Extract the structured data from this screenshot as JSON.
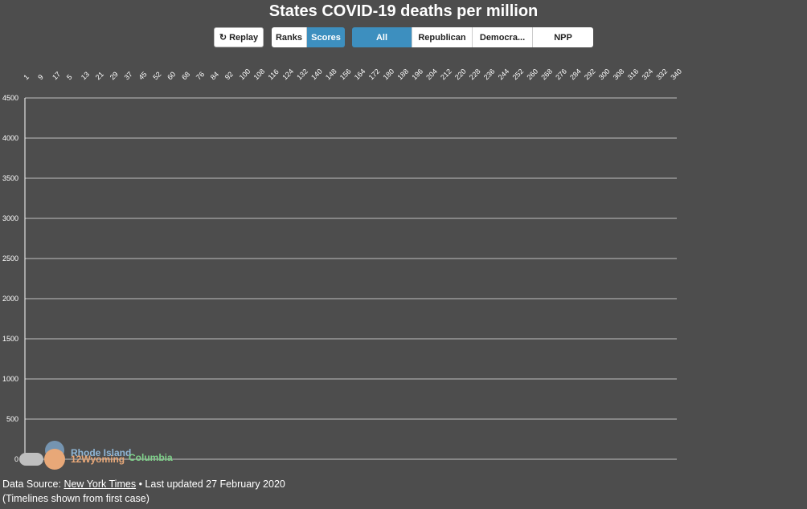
{
  "title": "States COVID-19 deaths per million",
  "controls": {
    "replay_label": "Replay",
    "view_options": [
      "Ranks",
      "Scores"
    ],
    "view_selected": "Scores",
    "party_options": [
      "All",
      "Republican",
      "Democra...",
      "NPP"
    ],
    "party_selected": "All"
  },
  "footer": {
    "source_prefix": "Data Source:",
    "source_link": "New York Times",
    "updated": "• Last updated 27 February 2020",
    "note": "(Timelines shown from first case)"
  },
  "colors": {
    "background": "#4d4d4d",
    "active": "#3d8fbf",
    "grid": "#ffffff"
  },
  "chart_data": {
    "type": "line",
    "title": "States COVID-19 deaths per million",
    "x_ticks": [
      "1",
      "9",
      "17",
      "5",
      "13",
      "21",
      "29",
      "37",
      "45",
      "52",
      "60",
      "68",
      "76",
      "84",
      "92",
      "100",
      "108",
      "116",
      "124",
      "132",
      "140",
      "148",
      "156",
      "164",
      "172",
      "180",
      "188",
      "196",
      "204",
      "212",
      "220",
      "228",
      "236",
      "244",
      "252",
      "260",
      "268",
      "276",
      "284",
      "292",
      "300",
      "308",
      "316",
      "324",
      "332",
      "340"
    ],
    "ylim": [
      0,
      4500
    ],
    "y_ticks": [
      0,
      500,
      1000,
      1500,
      2000,
      2500,
      3000,
      3500,
      4000,
      4500
    ],
    "grid": true,
    "series_labels": [
      {
        "name": "Wyoming",
        "rank": "12",
        "value": 0
      },
      {
        "name": "Columbia",
        "value": 0
      },
      {
        "name": "Rhode Island",
        "value": 0
      }
    ]
  }
}
